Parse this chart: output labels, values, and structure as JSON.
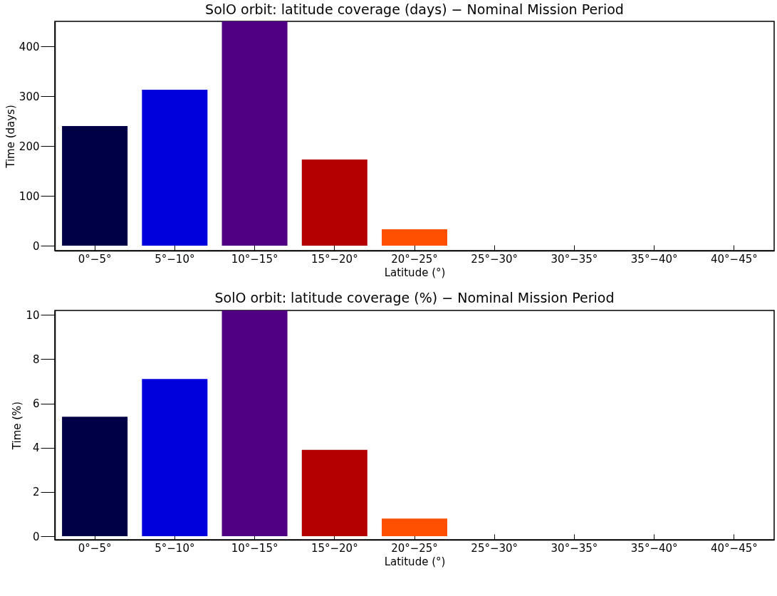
{
  "chart_data": [
    {
      "type": "bar",
      "title": "SolO orbit: latitude coverage (days) − Nominal Mission Period",
      "xlabel": "Latitude (°)",
      "ylabel": "Time (days)",
      "categories": [
        "0°−5°",
        "5°−10°",
        "10°−15°",
        "15°−20°",
        "20°−25°",
        "25°−30°",
        "30°−35°",
        "35°−40°",
        "40°−45°"
      ],
      "values": [
        240,
        313,
        450,
        173,
        33,
        0,
        0,
        0,
        0
      ],
      "colors": [
        "#000046",
        "#0000dc",
        "#500082",
        "#b40000",
        "#ff5000",
        "#ff8c00",
        "#ffc800",
        "#ffff00",
        "#ffff96"
      ],
      "ylim": [
        -10,
        450
      ],
      "yticks": [
        0,
        100,
        200,
        300,
        400
      ],
      "grid": false
    },
    {
      "type": "bar",
      "title": "SolO orbit: latitude coverage (%) − Nominal Mission Period",
      "xlabel": "Latitude (°)",
      "ylabel": "Time (%)",
      "categories": [
        "0°−5°",
        "5°−10°",
        "10°−15°",
        "15°−20°",
        "20°−25°",
        "25°−30°",
        "30°−35°",
        "35°−40°",
        "40°−45°"
      ],
      "values": [
        5.4,
        7.1,
        10.2,
        3.9,
        0.8,
        0,
        0,
        0,
        0
      ],
      "colors": [
        "#000046",
        "#0000dc",
        "#500082",
        "#b40000",
        "#ff5000",
        "#ff8c00",
        "#ffc800",
        "#ffff00",
        "#ffff96"
      ],
      "ylim": [
        -0.16,
        10.2
      ],
      "yticks": [
        0,
        2,
        4,
        6,
        8,
        10
      ],
      "grid": false
    }
  ]
}
